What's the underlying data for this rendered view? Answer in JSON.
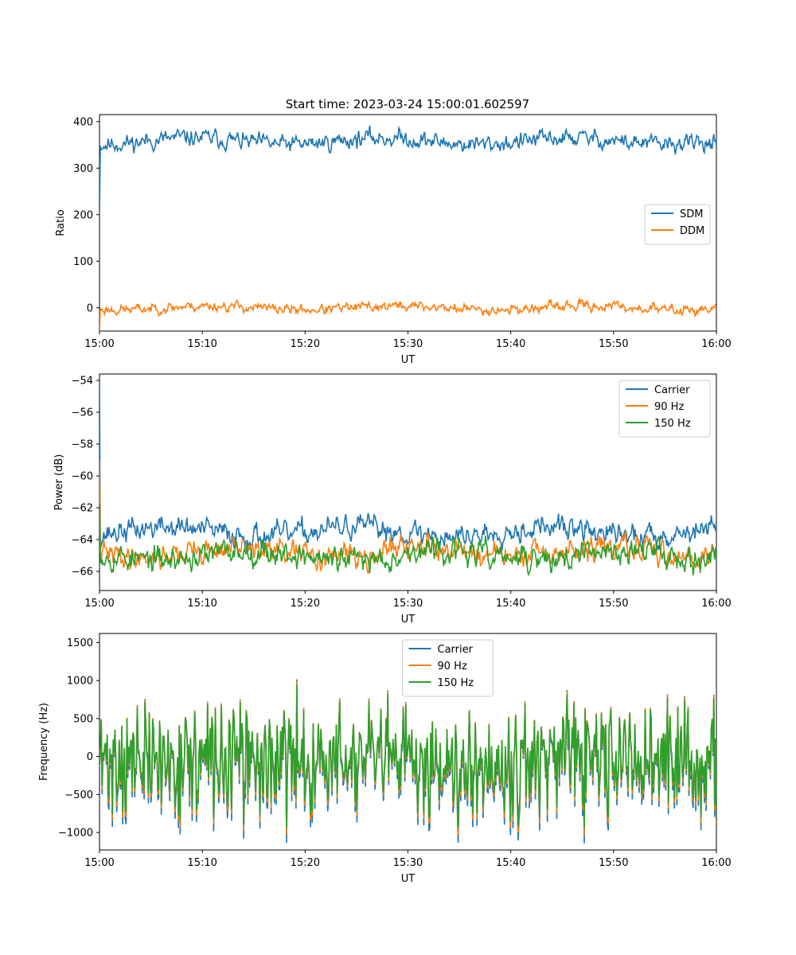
{
  "figure": {
    "title": "Start time: 2023-03-24 15:00:01.602597"
  },
  "colors": {
    "c0": "#1f77b4",
    "c1": "#ff7f0e",
    "c2": "#2ca02c"
  },
  "chart_data": [
    {
      "type": "line",
      "title": "Start time: 2023-03-24 15:00:01.602597",
      "xlabel": "UT",
      "ylabel": "Ratio",
      "x_range": [
        "15:00",
        "16:00"
      ],
      "x_ticks": [
        "15:00",
        "15:10",
        "15:20",
        "15:30",
        "15:40",
        "15:50",
        "16:00"
      ],
      "ylim": [
        -50,
        415
      ],
      "y_ticks": [
        0,
        100,
        200,
        300,
        400
      ],
      "grid": false,
      "legend_position": "center-right",
      "series": [
        {
          "name": "SDM",
          "color_key": "c0",
          "start": 200,
          "warmup": 1,
          "mean": 358,
          "amplitude": 14,
          "trend": 0,
          "seed": 11
        },
        {
          "name": "DDM",
          "color_key": "c1",
          "start": -50,
          "warmup": 1,
          "mean": 0,
          "amplitude": 8,
          "trend": 0,
          "seed": 23
        }
      ]
    },
    {
      "type": "line",
      "xlabel": "UT",
      "ylabel": "Power (dB)",
      "x_range": [
        "15:00",
        "16:00"
      ],
      "x_ticks": [
        "15:00",
        "15:10",
        "15:20",
        "15:30",
        "15:40",
        "15:50",
        "16:00"
      ],
      "ylim": [
        -67.2,
        -53.6
      ],
      "y_ticks": [
        -66,
        -64,
        -62,
        -60,
        -58,
        -56,
        -54
      ],
      "grid": false,
      "legend_position": "top-right",
      "series": [
        {
          "name": "Carrier",
          "color_key": "c0",
          "start": -54.2,
          "warmup": 1,
          "mean": -63.5,
          "amplitude": 0.55,
          "trend": 0,
          "seed": 37
        },
        {
          "name": "90 Hz",
          "color_key": "c1",
          "start": -59,
          "warmup": 1,
          "mean": -64.8,
          "amplitude": 0.55,
          "trend": 0,
          "seed": 41
        },
        {
          "name": "150 Hz",
          "color_key": "c2",
          "start": -61.8,
          "warmup": 1,
          "mean": -65.0,
          "amplitude": 0.6,
          "trend": 0,
          "seed": 53
        }
      ]
    },
    {
      "type": "line",
      "xlabel": "UT",
      "ylabel": "Frequency (Hz)",
      "x_range": [
        "15:00",
        "16:00"
      ],
      "x_ticks": [
        "15:00",
        "15:10",
        "15:20",
        "15:30",
        "15:40",
        "15:50",
        "16:00"
      ],
      "ylim": [
        -1230,
        1620
      ],
      "y_ticks": [
        -1000,
        -500,
        0,
        500,
        1000,
        1500
      ],
      "grid": false,
      "legend_position": "top-center",
      "series": [
        {
          "name": "Carrier",
          "color_key": "c0",
          "start": -150,
          "warmup": 0,
          "mean": -60,
          "amplitude": 400,
          "trend": 0,
          "seed": 71
        },
        {
          "name": "90 Hz",
          "color_key": "c1",
          "start": -120,
          "warmup": 0,
          "mean": -20,
          "amplitude": 400,
          "trend": 0,
          "seed": 71
        },
        {
          "name": "150 Hz",
          "color_key": "c2",
          "start": -100,
          "warmup": 0,
          "mean": 0,
          "amplitude": 400,
          "trend": 0,
          "seed": 71
        }
      ]
    }
  ]
}
